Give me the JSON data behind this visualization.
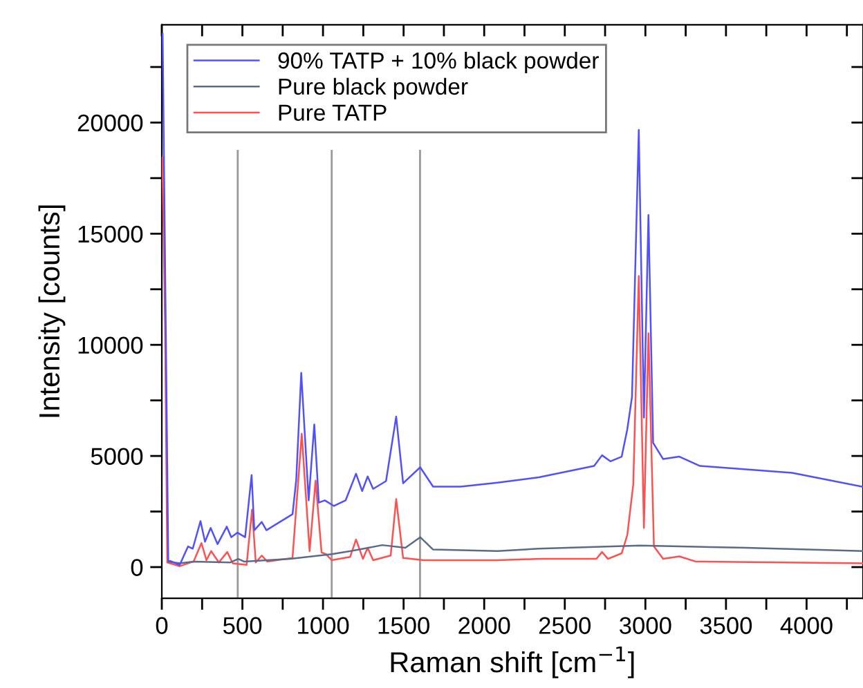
{
  "chart_data": {
    "type": "line",
    "xlabel": "Raman shift [cm$^{−1}$]",
    "ylabel": "Intensity [counts]",
    "xlim": [
      0,
      4350
    ],
    "ylim": [
      -1400,
      24400
    ],
    "xticks": [
      0,
      {
        "value": 250,
        "label": null
      },
      500,
      {
        "value": 750,
        "label": null
      },
      1000,
      {
        "value": 1250,
        "label": null
      },
      1500,
      {
        "value": 1750,
        "label": null
      },
      2000,
      {
        "value": 2250,
        "label": null
      },
      2500,
      {
        "value": 2750,
        "label": null
      },
      3000,
      {
        "value": 3250,
        "label": null
      },
      3500,
      {
        "value": 3750,
        "label": null
      },
      4000,
      {
        "value": 4250,
        "label": null
      }
    ],
    "yticks": [
      0,
      {
        "value": 2500,
        "label": null
      },
      5000,
      {
        "value": 7500,
        "label": null
      },
      10000,
      {
        "value": 12500,
        "label": null
      },
      15000,
      {
        "value": 17500,
        "label": null
      },
      20000,
      {
        "value": 22500,
        "label": null
      }
    ],
    "legend": "top left",
    "grid": false,
    "marker": "none",
    "line_style": "solid",
    "ref_lines": [
      {
        "axis": "x",
        "value": 471,
        "color": "#999999"
      },
      {
        "axis": "x",
        "value": 1054,
        "color": "#999999"
      },
      {
        "axis": "x",
        "value": 1602,
        "color": "#999999"
      }
    ],
    "series": [
      {
        "name": "90% TATP + 10% black powder",
        "color": "#5050ff",
        "x": [
          5,
          40,
          111,
          163,
          192,
          240,
          268,
          303,
          346,
          403,
          431,
          469,
          517,
          557,
          574,
          620,
          649,
          811,
          834,
          865,
          911,
          946,
          974,
          1011,
          1068,
          1140,
          1205,
          1243,
          1277,
          1311,
          1391,
          1454,
          1497,
          1603,
          1683,
          1854,
          2083,
          2339,
          2682,
          2731,
          2783,
          2853,
          2888,
          2917,
          2959,
          2991,
          3019,
          3048,
          3110,
          3211,
          3339,
          3910,
          4345
        ],
        "values": [
          24000,
          310,
          100,
          930,
          830,
          2070,
          1140,
          1760,
          1035,
          1820,
          1345,
          1550,
          1345,
          4140,
          1660,
          2030,
          1660,
          2380,
          3930,
          8740,
          3000,
          6420,
          2900,
          3000,
          2750,
          3000,
          4200,
          3420,
          4080,
          3520,
          3870,
          6770,
          3770,
          4490,
          3620,
          3620,
          3800,
          4040,
          4550,
          5030,
          4760,
          4970,
          6210,
          7660,
          19670,
          6730,
          15840,
          5590,
          4860,
          4970,
          4550,
          4240,
          3620
        ]
      },
      {
        "name": "Pure black powder",
        "color": "#5a6a8c",
        "x": [
          40,
          111,
          197,
          426,
          474,
          510,
          797,
          1054,
          1225,
          1368,
          1511,
          1603,
          1683,
          2083,
          2339,
          2968,
          3625,
          4345
        ],
        "values": [
          250,
          170,
          250,
          210,
          370,
          250,
          370,
          580,
          790,
          990,
          870,
          1345,
          790,
          720,
          830,
          970,
          870,
          720
        ]
      },
      {
        "name": "Pure TATP",
        "color": "#ff5050",
        "x": [
          3,
          20,
          34,
          111,
          197,
          246,
          277,
          306,
          354,
          406,
          440,
          526,
          560,
          583,
          620,
          654,
          811,
          868,
          917,
          954,
          991,
          1020,
          1054,
          1168,
          1205,
          1248,
          1277,
          1311,
          1420,
          1454,
          1497,
          1625,
          2083,
          2339,
          2696,
          2731,
          2768,
          2853,
          2888,
          2925,
          2959,
          2991,
          3019,
          3053,
          3110,
          3211,
          3311,
          4345
        ],
        "values": [
          18420,
          10970,
          210,
          40,
          250,
          1080,
          310,
          720,
          210,
          680,
          170,
          100,
          2590,
          210,
          520,
          250,
          410,
          6000,
          720,
          3890,
          660,
          580,
          310,
          455,
          1240,
          370,
          870,
          310,
          520,
          3060,
          410,
          310,
          310,
          370,
          370,
          680,
          370,
          620,
          1450,
          3730,
          13100,
          1760,
          10520,
          930,
          370,
          480,
          250,
          170
        ]
      }
    ]
  }
}
